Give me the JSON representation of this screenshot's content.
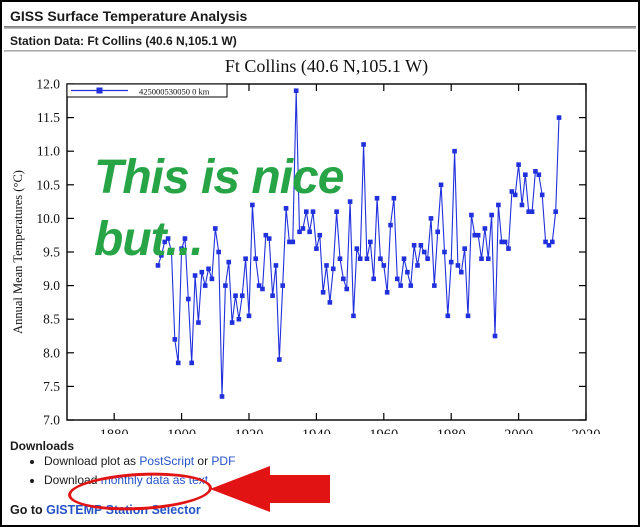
{
  "header": {
    "title": "GISS Surface Temperature Analysis",
    "subtitle": "Station Data: Ft Collins (40.6 N,105.1 W)"
  },
  "annotations": {
    "green_line1": "This is nice",
    "green_line2": "but...",
    "green_color": "#27a446",
    "red_color": "#e21313"
  },
  "chart_data": {
    "type": "line",
    "title": "Ft Collins (40.6 N,105.1 W)",
    "ylabel": "Annual Mean Temperatures (°C)",
    "xlabel": "",
    "legend": {
      "label": "425000530050 0 km",
      "position": "top-left"
    },
    "series_color": "#2030dd",
    "marker": "square",
    "grid": false,
    "xlim": [
      1866,
      2020
    ],
    "ylim": [
      7.0,
      12.0
    ],
    "x_ticks": [
      1880,
      1900,
      1920,
      1940,
      1960,
      1980,
      2000,
      2020
    ],
    "y_ticks": [
      7.0,
      7.5,
      8.0,
      8.5,
      9.0,
      9.5,
      10.0,
      10.5,
      11.0,
      11.5,
      12.0
    ],
    "x": [
      1893,
      1894,
      1895,
      1896,
      1897,
      1898,
      1899,
      1900,
      1901,
      1902,
      1903,
      1904,
      1905,
      1906,
      1907,
      1908,
      1909,
      1910,
      1911,
      1912,
      1913,
      1914,
      1915,
      1916,
      1917,
      1918,
      1919,
      1920,
      1921,
      1922,
      1923,
      1924,
      1925,
      1926,
      1927,
      1928,
      1929,
      1930,
      1931,
      1932,
      1933,
      1934,
      1935,
      1936,
      1937,
      1938,
      1939,
      1940,
      1941,
      1942,
      1943,
      1944,
      1945,
      1946,
      1947,
      1948,
      1949,
      1950,
      1951,
      1952,
      1953,
      1954,
      1955,
      1956,
      1957,
      1958,
      1959,
      1960,
      1961,
      1962,
      1963,
      1964,
      1965,
      1966,
      1967,
      1968,
      1969,
      1970,
      1971,
      1972,
      1973,
      1974,
      1975,
      1976,
      1977,
      1978,
      1979,
      1980,
      1981,
      1982,
      1983,
      1984,
      1985,
      1986,
      1987,
      1988,
      1989,
      1990,
      1991,
      1992,
      1993,
      1994,
      1995,
      1996,
      1997,
      1998,
      1999,
      2000,
      2001,
      2002,
      2003,
      2004,
      2005,
      2006,
      2007,
      2008,
      2009,
      2010,
      2011,
      2012
    ],
    "values": [
      9.3,
      9.45,
      9.65,
      9.7,
      9.5,
      8.2,
      7.85,
      9.55,
      9.7,
      8.8,
      7.85,
      9.15,
      8.45,
      9.2,
      9.0,
      9.25,
      9.1,
      9.85,
      9.5,
      7.35,
      9.0,
      9.35,
      8.45,
      8.85,
      8.5,
      8.85,
      9.4,
      8.55,
      10.2,
      9.4,
      9.0,
      8.95,
      9.75,
      9.7,
      8.85,
      9.3,
      7.9,
      9.0,
      10.15,
      9.65,
      9.65,
      11.9,
      9.8,
      9.85,
      10.1,
      9.8,
      10.1,
      9.55,
      9.75,
      8.9,
      9.3,
      8.75,
      9.25,
      10.1,
      9.4,
      9.1,
      8.95,
      10.25,
      8.55,
      9.55,
      9.4,
      11.1,
      9.4,
      9.65,
      9.1,
      10.3,
      9.4,
      9.3,
      8.9,
      9.9,
      10.3,
      9.1,
      9.0,
      9.4,
      9.2,
      9.0,
      9.6,
      9.3,
      9.6,
      9.5,
      9.4,
      10.0,
      9.0,
      9.8,
      10.5,
      9.5,
      8.55,
      9.35,
      11.0,
      9.3,
      9.2,
      9.55,
      8.55,
      10.05,
      9.75,
      9.75,
      9.4,
      9.85,
      9.4,
      10.05,
      8.25,
      10.2,
      9.65,
      9.65,
      9.55,
      10.4,
      10.35,
      10.8,
      10.2,
      10.65,
      10.1,
      10.1,
      10.7,
      10.65,
      10.35,
      9.65,
      9.6,
      9.65,
      10.1,
      11.5
    ]
  },
  "downloads": {
    "title": "Downloads",
    "items": [
      {
        "segments": [
          {
            "text": "Download plot as "
          },
          {
            "text": "PostScript",
            "link": true
          },
          {
            "text": " or "
          },
          {
            "text": "PDF",
            "link": true
          }
        ]
      },
      {
        "segments": [
          {
            "text": "Download "
          },
          {
            "text": "monthly data as text",
            "link": true
          }
        ]
      }
    ],
    "goto_prefix": "Go to ",
    "goto_link": "GISTEMP Station Selector"
  }
}
